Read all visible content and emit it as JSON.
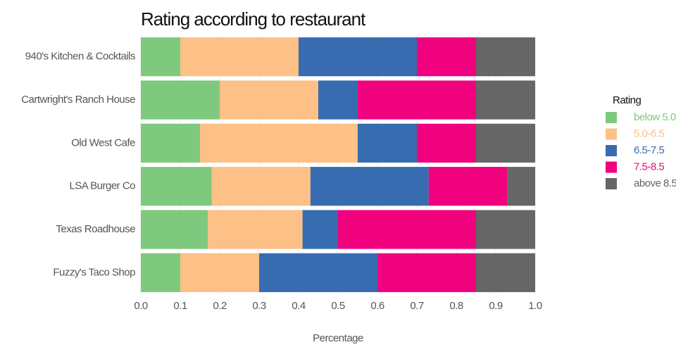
{
  "chart_data": {
    "type": "stacked-barh",
    "title": "Rating according to restaurant",
    "xlabel": "Percentage",
    "categories": [
      "940's Kitchen & Cocktails",
      "Cartwright's Ranch House",
      "Old West Cafe",
      "LSA Burger Co",
      "Texas Roadhouse",
      "Fuzzy's Taco Shop"
    ],
    "series": [
      {
        "name": "below 5.0",
        "color": "#7fc97f",
        "values": [
          0.1,
          0.2,
          0.15,
          0.18,
          0.17,
          0.1
        ]
      },
      {
        "name": "5.0-6.5",
        "color": "#fdc086",
        "values": [
          0.3,
          0.25,
          0.4,
          0.25,
          0.24,
          0.2
        ]
      },
      {
        "name": "6.5-7.5",
        "color": "#386cb0",
        "values": [
          0.3,
          0.1,
          0.15,
          0.3,
          0.09,
          0.3
        ]
      },
      {
        "name": "7.5-8.5",
        "color": "#f0027f",
        "values": [
          0.15,
          0.3,
          0.15,
          0.2,
          0.35,
          0.25
        ]
      },
      {
        "name": "above 8.5",
        "color": "#666666",
        "values": [
          0.15,
          0.15,
          0.15,
          0.07,
          0.15,
          0.15
        ]
      }
    ],
    "legend_title": "Rating",
    "legend": "right",
    "xlim": [
      0,
      1
    ],
    "xticks": [
      {
        "value": 0,
        "label": "0.0"
      },
      0.1,
      0.2,
      0.3,
      0.4,
      0.5,
      0.6,
      0.7,
      0.8,
      0.9,
      {
        "value": 1,
        "label": "1.0"
      }
    ],
    "grid": true
  }
}
